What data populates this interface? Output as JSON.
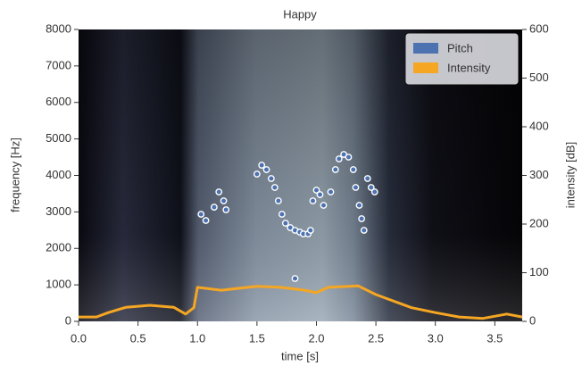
{
  "chart_data": {
    "type": "combo",
    "title": "Happy",
    "x_label": "time [s]",
    "y_label": "frequency [Hz]",
    "y2_label": "intensity [dB]",
    "xlim": [
      0,
      3.73
    ],
    "xticks": [
      {
        "value": 0,
        "label": "0.0"
      },
      0.5,
      {
        "value": 1,
        "label": "1.0"
      },
      1.5,
      {
        "value": 2,
        "label": "2.0"
      },
      2.5,
      {
        "value": 3,
        "label": "3.0"
      },
      3.5
    ],
    "ylim": [
      0,
      8000
    ],
    "yticks": [
      0,
      1000,
      2000,
      3000,
      4000,
      5000,
      6000,
      7000,
      8000
    ],
    "y2lim": [
      0,
      600
    ],
    "y2ticks": [
      0,
      100,
      200,
      300,
      400,
      500,
      600
    ],
    "legend": "upper right",
    "series": [
      {
        "name": "Pitch",
        "type": "scatter",
        "color": "#4c72b0",
        "axis": "y",
        "x": [
          1.03,
          1.07,
          1.14,
          1.18,
          1.22,
          1.24,
          1.5,
          1.54,
          1.58,
          1.62,
          1.65,
          1.68,
          1.71,
          1.74,
          1.78,
          1.82,
          1.86,
          1.89,
          1.93,
          1.95,
          1.82,
          1.97,
          2.0,
          2.03,
          2.06,
          2.12,
          2.16,
          2.19,
          2.23,
          2.27,
          2.31,
          2.33,
          2.36,
          2.38,
          2.4,
          2.43,
          2.46,
          2.49
        ],
        "values": [
          2935,
          2764,
          3130,
          3547,
          3302,
          3058,
          4036,
          4280,
          4158,
          3914,
          3669,
          3302,
          2935,
          2690,
          2568,
          2495,
          2446,
          2397,
          2397,
          2495,
          1174,
          3302,
          3596,
          3473,
          3180,
          3547,
          4158,
          4452,
          4574,
          4501,
          4158,
          3669,
          3180,
          2813,
          2495,
          3914,
          3669,
          3547
        ]
      },
      {
        "name": "Intensity",
        "type": "line",
        "color": "#f5a623",
        "axis": "y2",
        "x": [
          0,
          0.15,
          0.25,
          0.4,
          0.6,
          0.8,
          0.9,
          0.97,
          1.0,
          1.2,
          1.5,
          1.7,
          1.9,
          2.0,
          2.1,
          2.35,
          2.5,
          2.7,
          2.8,
          3.0,
          3.2,
          3.4,
          3.6,
          3.73
        ],
        "values": [
          9,
          9,
          18,
          29,
          33,
          29,
          15,
          28,
          70,
          64,
          72,
          70,
          64,
          59,
          70,
          73,
          55,
          37,
          28,
          18,
          9,
          6,
          15,
          9
        ]
      }
    ]
  }
}
